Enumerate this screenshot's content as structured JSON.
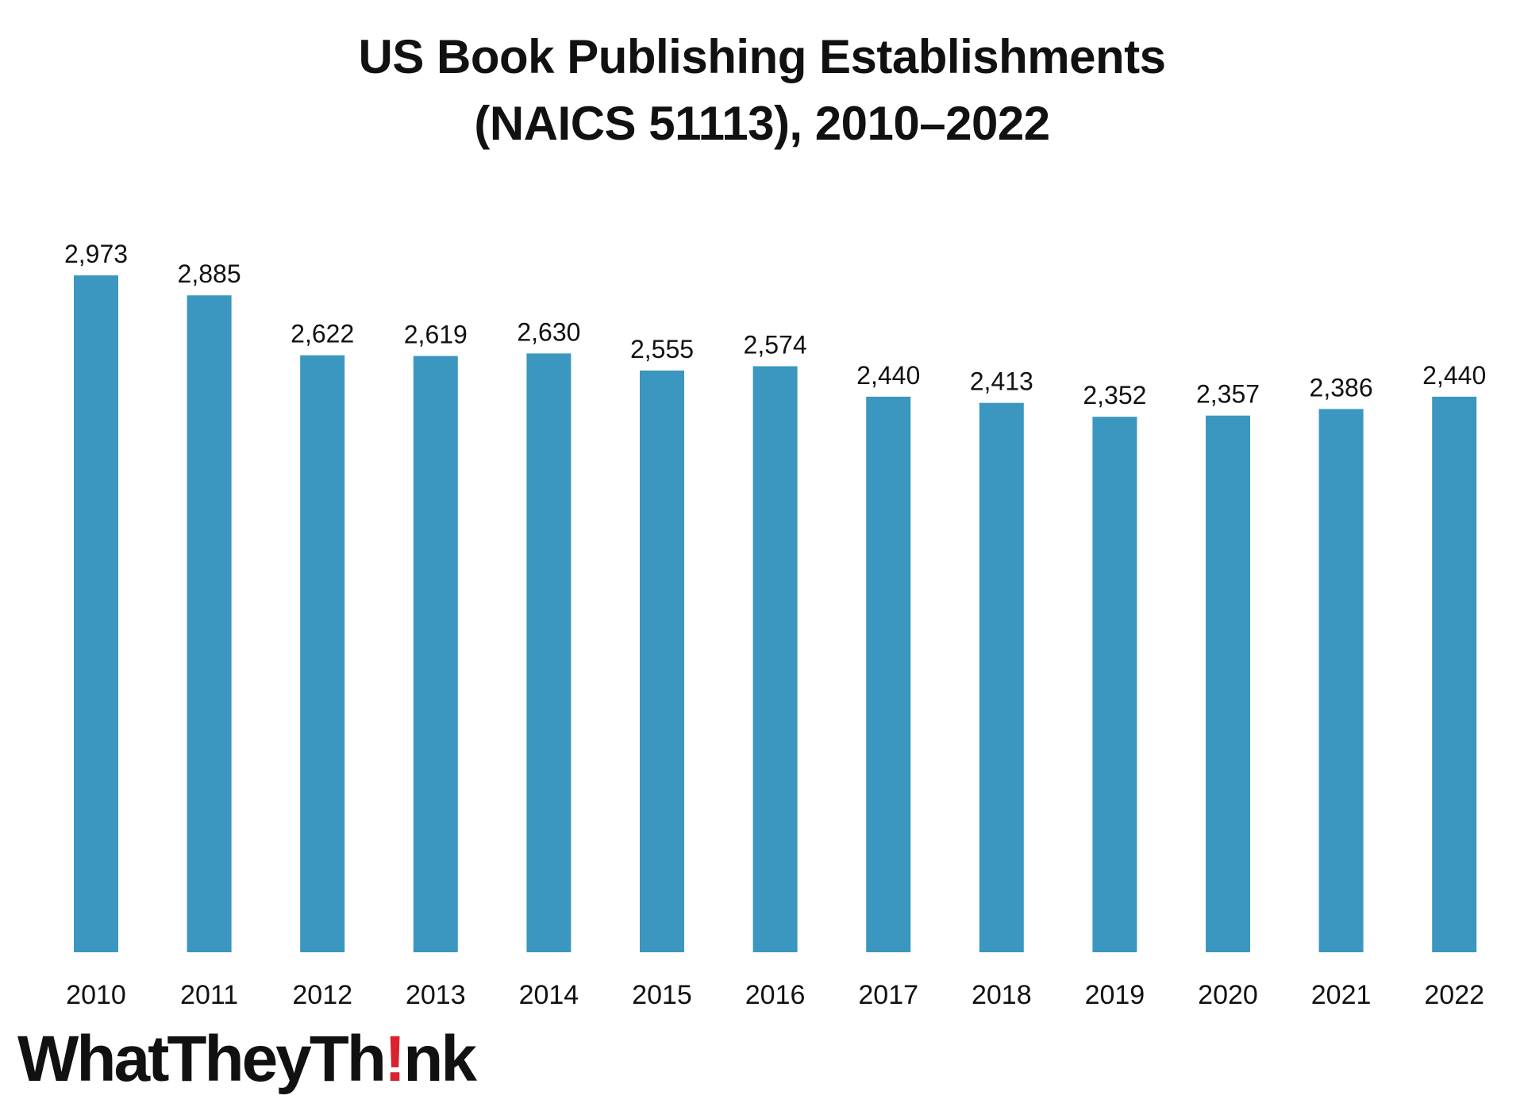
{
  "chart_data": {
    "type": "bar",
    "title_line1": "US Book Publishing Establishments",
    "title_line2": "(NAICS 51113), 2010–2022",
    "categories": [
      "2010",
      "2011",
      "2012",
      "2013",
      "2014",
      "2015",
      "2016",
      "2017",
      "2018",
      "2019",
      "2020",
      "2021",
      "2022"
    ],
    "values": [
      2973,
      2885,
      2622,
      2619,
      2630,
      2555,
      2574,
      2440,
      2413,
      2352,
      2357,
      2386,
      2440
    ],
    "data_labels": [
      "2,973",
      "2,885",
      "2,622",
      "2,619",
      "2,630",
      "2,555",
      "2,574",
      "2,440",
      "2,413",
      "2,352",
      "2,357",
      "2,386",
      "2,440"
    ],
    "ylim": [
      0,
      2973
    ],
    "grid": false,
    "bar_color": "#3b97c0"
  },
  "logo": {
    "text_before": "WhatTheyTh",
    "text_mark": "!",
    "text_after": "nk",
    "mark_color": "#d9232e"
  }
}
